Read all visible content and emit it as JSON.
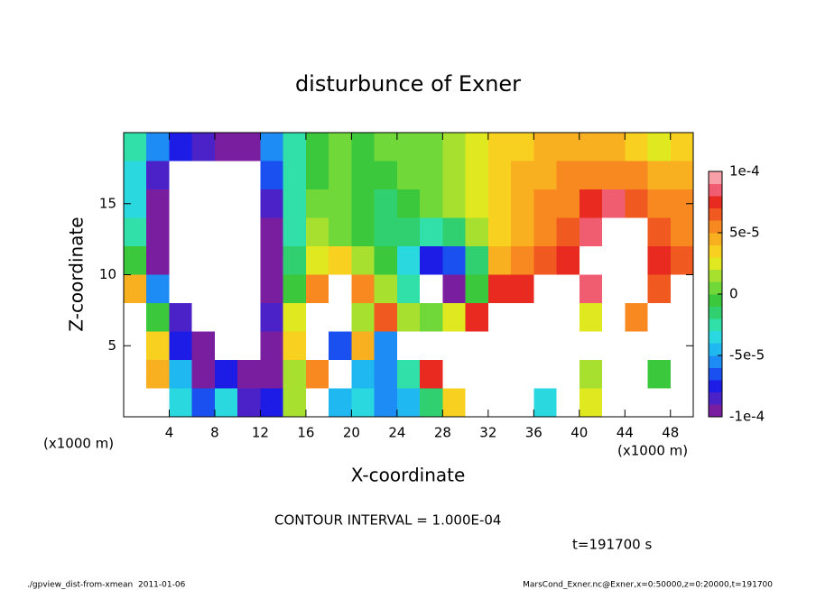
{
  "chart_data": {
    "type": "heatmap",
    "title": "disturbunce of Exner",
    "x_label": "X-coordinate",
    "y_label": "Z-coordinate",
    "x_unit": "(x1000 m)",
    "y_unit": "(x1000 m)",
    "xlim": [
      0,
      50
    ],
    "ylim": [
      0,
      20
    ],
    "xticks": [
      4,
      8,
      12,
      16,
      20,
      24,
      28,
      32,
      36,
      40,
      44,
      48
    ],
    "yticks": [
      5,
      10,
      15
    ],
    "x": [
      1,
      3,
      5,
      7,
      9,
      11,
      13,
      15,
      17,
      19,
      21,
      23,
      25,
      27,
      29,
      31,
      33,
      35,
      37,
      39,
      41,
      43,
      45,
      47,
      49
    ],
    "y": [
      19,
      17,
      15,
      13,
      11,
      9,
      7,
      5,
      3,
      1
    ],
    "z": [
      [
        -2e-05,
        -5e-05,
        -7e-05,
        -8e-05,
        -9e-05,
        -9e-05,
        -5e-05,
        -2e-05,
        0,
        1e-05,
        0,
        1e-05,
        1e-05,
        1e-05,
        2e-05,
        3e-05,
        4e-05,
        4e-05,
        5e-05,
        5e-05,
        5e-05,
        5e-05,
        4e-05,
        3e-05,
        4e-05
      ],
      [
        -3e-05,
        -8e-05,
        -0.0002,
        -0.0002,
        -0.0002,
        -0.00011,
        -6e-05,
        -2e-05,
        0,
        1e-05,
        0,
        0,
        1e-05,
        1e-05,
        2e-05,
        3e-05,
        4e-05,
        5e-05,
        5e-05,
        6e-05,
        6e-05,
        6e-05,
        6e-05,
        5e-05,
        5e-05
      ],
      [
        -3e-05,
        -9e-05,
        -0.0002,
        -0.0002,
        -0.0002,
        -0.0002,
        -8e-05,
        -2e-05,
        1e-05,
        1e-05,
        0,
        -1e-05,
        0,
        1e-05,
        2e-05,
        3e-05,
        4e-05,
        5e-05,
        6e-05,
        6e-05,
        8e-05,
        9e-05,
        7e-05,
        6e-05,
        6e-05
      ],
      [
        -2e-05,
        -0.0001,
        -0.0002,
        -0.0002,
        -0.0002,
        -0.0002,
        -9e-05,
        -2e-05,
        2e-05,
        1e-05,
        0,
        -1e-05,
        -1e-05,
        -2e-05,
        -1e-05,
        2e-05,
        4e-05,
        5e-05,
        6e-05,
        7e-05,
        9e-05,
        0.0002,
        0.0002,
        7e-05,
        6e-05
      ],
      [
        0,
        -9e-05,
        -0.0002,
        -0.0002,
        -0.0002,
        -0.0002,
        -0.0001,
        -1e-05,
        3e-05,
        4e-05,
        2e-05,
        0,
        -3e-05,
        -7e-05,
        -6e-05,
        -1e-05,
        5e-05,
        6e-05,
        7e-05,
        8e-05,
        0.0002,
        0.0002,
        0.0002,
        8e-05,
        7e-05
      ],
      [
        5e-05,
        -5e-05,
        -0.0002,
        -0.0002,
        -0.0002,
        -0.0002,
        -9e-05,
        0,
        6e-05,
        0.0002,
        6e-05,
        2e-05,
        -2e-05,
        -0.0002,
        -9e-05,
        0,
        8e-05,
        8e-05,
        0.0002,
        0.0002,
        9e-05,
        0.0002,
        0.0002,
        7e-05,
        0.0002
      ],
      [
        0.0002,
        0,
        -8e-05,
        -0.0002,
        -0.0002,
        -0.0002,
        -8e-05,
        3e-05,
        0.0002,
        0.0002,
        2e-05,
        7e-05,
        2e-05,
        1e-05,
        3e-05,
        8e-05,
        0.0002,
        0.0002,
        0.0002,
        0.0002,
        3e-05,
        0.0002,
        6e-05,
        0.0002,
        0.0002
      ],
      [
        0.0002,
        4e-05,
        -7e-05,
        -9e-05,
        -0.0002,
        -0.0002,
        -9e-05,
        4e-05,
        0.0002,
        -6e-05,
        5e-05,
        -5e-05,
        0.0002,
        0.0002,
        0.0002,
        -0.0002,
        -0.0002,
        -0.0002,
        0.0002,
        0.0002,
        0.0002,
        0.0002,
        0.0002,
        0.0002,
        0.0002
      ],
      [
        0.0002,
        5e-05,
        -4e-05,
        -9e-05,
        -7e-05,
        -9e-05,
        -9e-05,
        2e-05,
        6e-05,
        -0.0002,
        -4e-05,
        -5e-05,
        -2e-05,
        8e-05,
        0.0002,
        -0.0002,
        -0.0002,
        -0.0002,
        0.0002,
        0.0002,
        2e-05,
        0.0002,
        0.0002,
        0,
        0.0002
      ],
      [
        0.0002,
        0.0002,
        -3e-05,
        -6e-05,
        -3e-05,
        -8e-05,
        -7e-05,
        2e-05,
        0.0002,
        -4e-05,
        -3e-05,
        -5e-05,
        -4e-05,
        -1e-05,
        4e-05,
        -0.0002,
        -0.0002,
        -0.0002,
        -3e-05,
        0.0002,
        3e-05,
        0.0002,
        0.0002,
        0.0002,
        0.0002
      ]
    ],
    "out_of_range_color": "#ffffff",
    "colorbar": {
      "levels": [
        -0.0001,
        -9e-05,
        -8e-05,
        -7e-05,
        -6e-05,
        -5e-05,
        -4e-05,
        -3e-05,
        -2e-05,
        -1e-05,
        0,
        1e-05,
        2e-05,
        3e-05,
        4e-05,
        5e-05,
        6e-05,
        7e-05,
        8e-05,
        9e-05,
        0.0001
      ],
      "colors": [
        "#7a1ea0",
        "#4a22c8",
        "#1c1ce6",
        "#1a50f0",
        "#1e8cf5",
        "#20b8f0",
        "#2ad8e0",
        "#30e0a8",
        "#30d070",
        "#3cc83c",
        "#70d838",
        "#a8e030",
        "#e0e820",
        "#f8d020",
        "#f8b020",
        "#f88820",
        "#f05a20",
        "#e82a20",
        "#f05c70",
        "#f8a0a8"
      ],
      "ticks": [
        {
          "value": 0.0001,
          "label": "1e-4"
        },
        {
          "value": 5e-05,
          "label": "5e-5"
        },
        0,
        {
          "value": -5e-05,
          "label": "-5e-5"
        },
        {
          "value": -0.0001,
          "label": "-1e-4"
        }
      ]
    },
    "annotations": {
      "contour_interval": "CONTOUR INTERVAL = 1.000E-04",
      "time": "t=191700 s",
      "footer_left": "./gpview_dist-from-xmean  2011-01-06",
      "footer_right": "MarsCond_Exner.nc@Exner,x=0:50000,z=0:20000,t=191700"
    }
  }
}
